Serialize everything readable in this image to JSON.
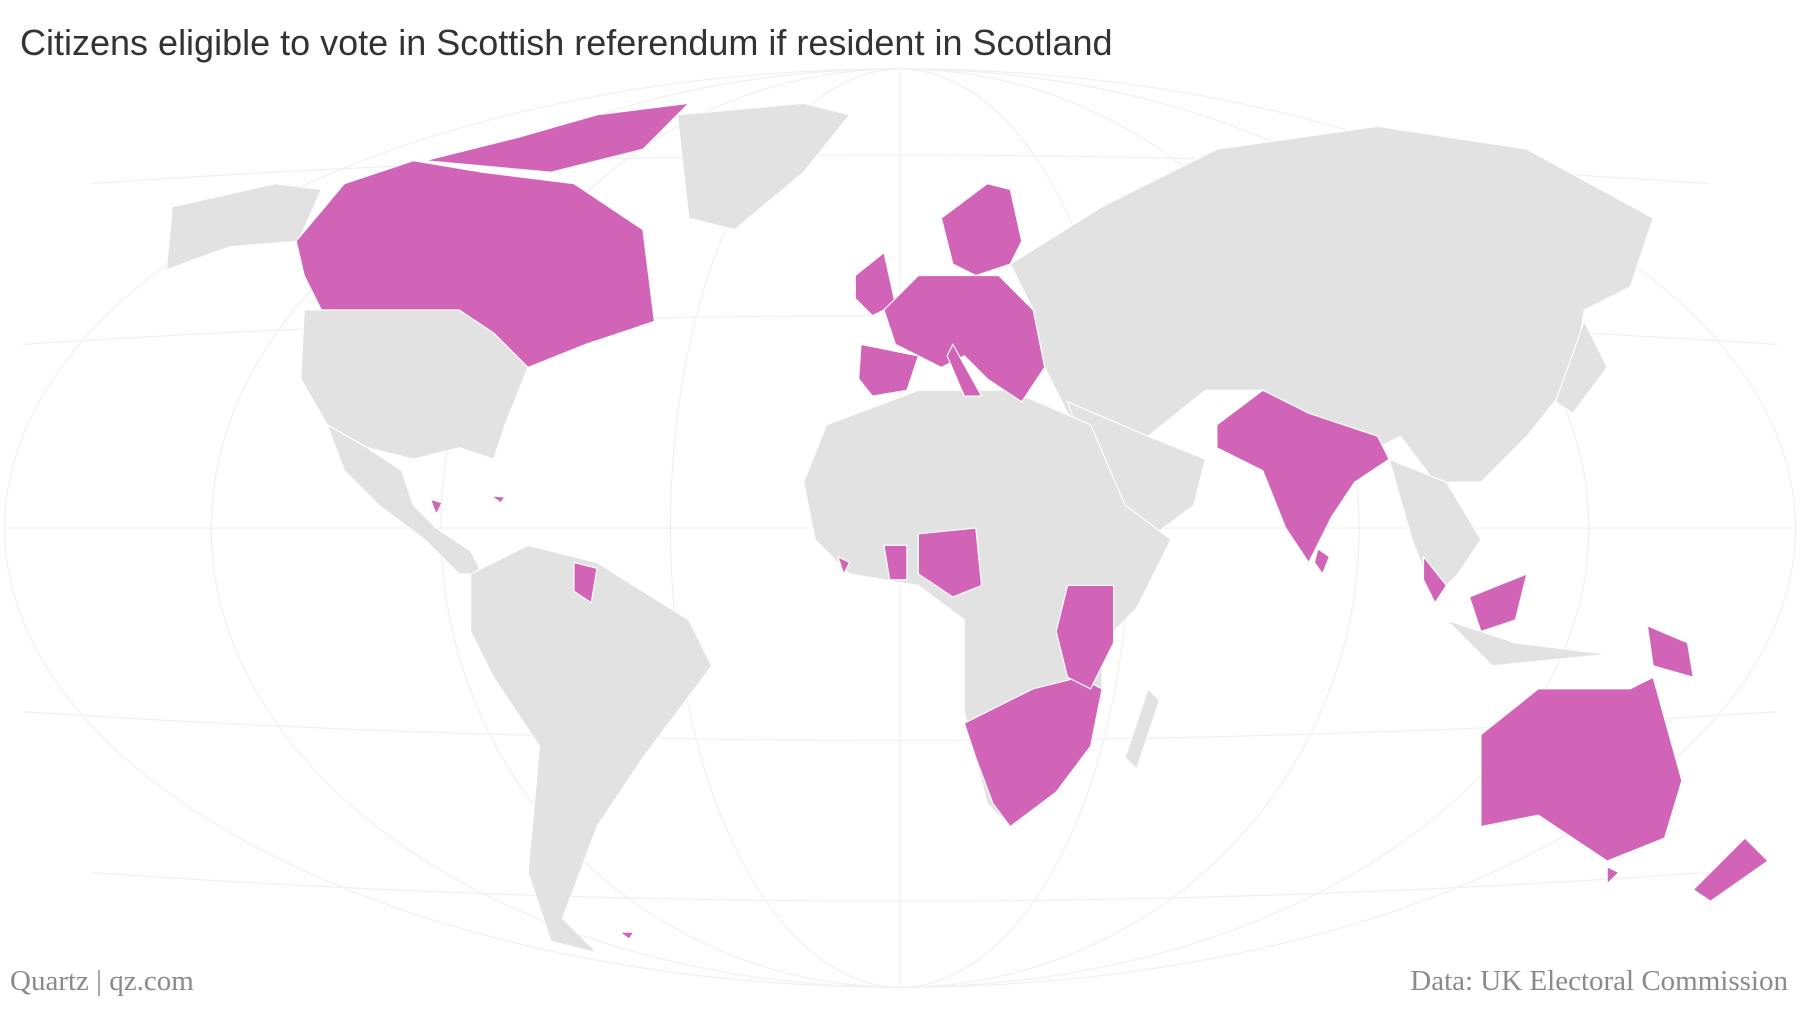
{
  "header": {
    "title": "Citizens eligible to vote in Scottish referendum if resident in Scotland"
  },
  "footer": {
    "credit": "Quartz | qz.com",
    "source": "Data: UK Electoral Commission"
  }
}
